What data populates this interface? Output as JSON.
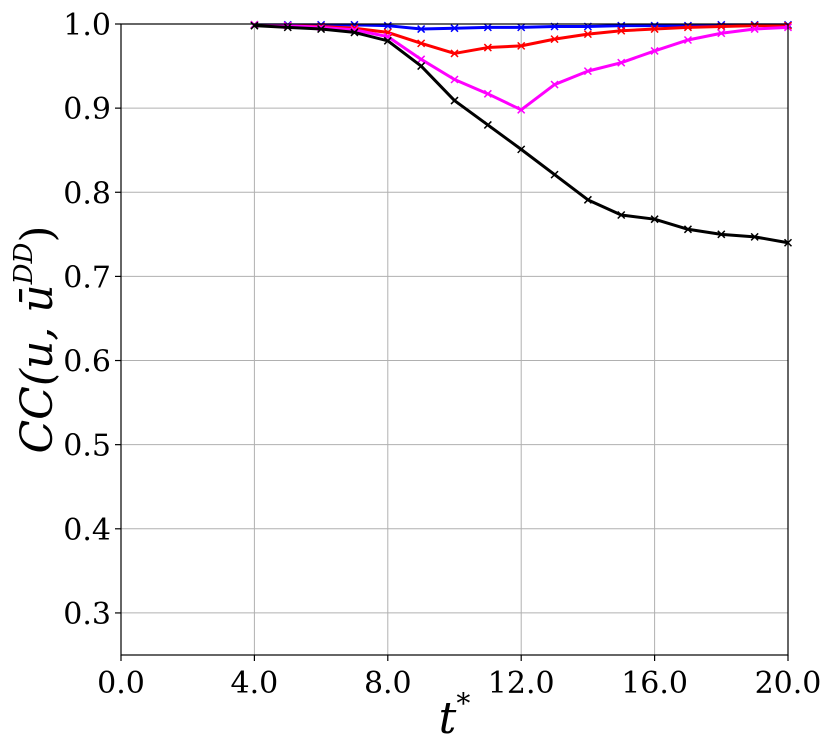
{
  "chart_data": {
    "type": "line",
    "title": "",
    "xlabel_main": "t",
    "xlabel_sup": "*",
    "ylabel_main": "CC(u, ū",
    "ylabel_sup": "DD",
    "ylabel_close": ")",
    "xlim": [
      0,
      20
    ],
    "ylim": [
      0.25,
      1.0
    ],
    "xticks": [
      0,
      4,
      8,
      12,
      16,
      20
    ],
    "xtick_labels": [
      "0.0",
      "4.0",
      "8.0",
      "12.0",
      "16.0",
      "20.0"
    ],
    "yticks": [
      0.3,
      0.4,
      0.5,
      0.6,
      0.7,
      0.8,
      0.9,
      1.0
    ],
    "ytick_labels": [
      "0.3",
      "0.4",
      "0.5",
      "0.6",
      "0.7",
      "0.8",
      "0.9",
      "1.0"
    ],
    "grid": true,
    "legend": "none",
    "series": [
      {
        "color": "#0000ff",
        "x": [
          4,
          5,
          6,
          7,
          8,
          9,
          10,
          11,
          12,
          13,
          14,
          15,
          16,
          17,
          18,
          19,
          20
        ],
        "y": [
          0.999,
          0.999,
          0.999,
          0.999,
          0.998,
          0.994,
          0.995,
          0.996,
          0.996,
          0.997,
          0.997,
          0.998,
          0.998,
          0.998,
          0.999,
          0.999,
          0.999
        ]
      },
      {
        "color": "#ff0000",
        "x": [
          4,
          5,
          6,
          7,
          8,
          9,
          10,
          11,
          12,
          13,
          14,
          15,
          16,
          17,
          18,
          19,
          20
        ],
        "y": [
          0.999,
          0.998,
          0.997,
          0.995,
          0.99,
          0.977,
          0.965,
          0.972,
          0.974,
          0.982,
          0.988,
          0.992,
          0.994,
          0.996,
          0.997,
          0.998,
          0.998
        ]
      },
      {
        "color": "#ff00ff",
        "x": [
          4,
          5,
          6,
          7,
          8,
          9,
          10,
          11,
          12,
          13,
          14,
          15,
          16,
          17,
          18,
          19,
          20
        ],
        "y": [
          0.999,
          0.998,
          0.996,
          0.993,
          0.985,
          0.958,
          0.934,
          0.917,
          0.898,
          0.928,
          0.944,
          0.954,
          0.968,
          0.981,
          0.989,
          0.994,
          0.996
        ]
      },
      {
        "color": "#000000",
        "x": [
          4,
          5,
          6,
          7,
          8,
          9,
          10,
          11,
          12,
          13,
          14,
          15,
          16,
          17,
          18,
          19,
          20
        ],
        "y": [
          0.998,
          0.996,
          0.994,
          0.99,
          0.98,
          0.95,
          0.909,
          0.88,
          0.851,
          0.821,
          0.791,
          0.773,
          0.768,
          0.756,
          0.75,
          0.747,
          0.74
        ]
      }
    ]
  }
}
